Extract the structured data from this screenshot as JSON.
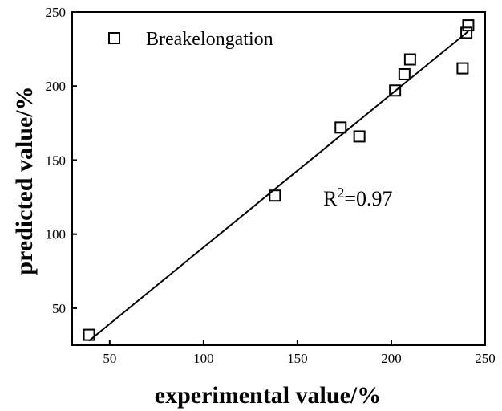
{
  "chart_data": {
    "type": "scatter",
    "title": "",
    "xlabel": "experimental value/%",
    "ylabel": "predicted value/%",
    "xlim": [
      30,
      250
    ],
    "ylim": [
      25,
      250
    ],
    "x_ticks": [
      50,
      100,
      150,
      200,
      250
    ],
    "y_ticks": [
      50,
      100,
      150,
      200,
      250
    ],
    "grid": false,
    "legend_position": "top-left",
    "series": [
      {
        "name": "Breakelongation",
        "marker": "open-square",
        "color": "#000000",
        "points": [
          {
            "x": 39,
            "y": 32
          },
          {
            "x": 138,
            "y": 126
          },
          {
            "x": 173,
            "y": 172
          },
          {
            "x": 183,
            "y": 166
          },
          {
            "x": 202,
            "y": 197
          },
          {
            "x": 207,
            "y": 208
          },
          {
            "x": 210,
            "y": 218
          },
          {
            "x": 238,
            "y": 212
          },
          {
            "x": 240,
            "y": 236
          },
          {
            "x": 241,
            "y": 241
          }
        ]
      }
    ],
    "fit_line": {
      "x": [
        39,
        241
      ],
      "y": [
        28,
        237
      ]
    },
    "annotation": {
      "prefix": "R",
      "sup": "2",
      "suffix": "=0.97"
    }
  }
}
